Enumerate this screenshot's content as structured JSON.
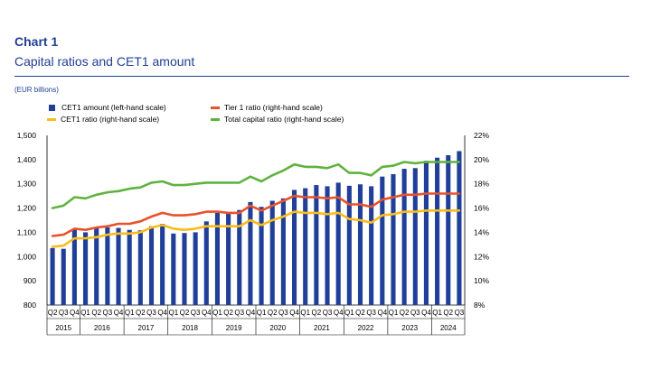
{
  "header": {
    "chart_label": "Chart 1",
    "chart_title": "Capital ratios and CET1 amount",
    "unit": "(EUR billions)"
  },
  "colors": {
    "cet1_amount": "#203f99",
    "cet1_ratio": "#fbbc1b",
    "tier1_ratio": "#e8522c",
    "total_capital_ratio": "#5fb33d"
  },
  "chart_data": {
    "type": "bar+line",
    "title": "Capital ratios and CET1 amount",
    "unit": "(EUR billions)",
    "quarter_labels": [
      "Q2",
      "Q3",
      "Q4",
      "Q1",
      "Q2",
      "Q3",
      "Q4",
      "Q1",
      "Q2",
      "Q3",
      "Q4",
      "Q1",
      "Q2",
      "Q3",
      "Q4",
      "Q1",
      "Q2",
      "Q3",
      "Q4",
      "Q1",
      "Q2",
      "Q3",
      "Q4",
      "Q1",
      "Q2",
      "Q3",
      "Q4",
      "Q1",
      "Q2",
      "Q3",
      "Q4",
      "Q1",
      "Q2",
      "Q3",
      "Q4",
      "Q1",
      "Q2",
      "Q3"
    ],
    "years": [
      {
        "label": "2015",
        "quarters": 3
      },
      {
        "label": "2016",
        "quarters": 4
      },
      {
        "label": "2017",
        "quarters": 4
      },
      {
        "label": "2018",
        "quarters": 4
      },
      {
        "label": "2019",
        "quarters": 4
      },
      {
        "label": "2020",
        "quarters": 4
      },
      {
        "label": "2021",
        "quarters": 4
      },
      {
        "label": "2022",
        "quarters": 4
      },
      {
        "label": "2023",
        "quarters": 4
      },
      {
        "label": "2024",
        "quarters": 3
      }
    ],
    "left_axis": {
      "min": 800,
      "max": 1500,
      "ticks": [
        "800",
        "900",
        "1,000",
        "1,100",
        "1,200",
        "1,300",
        "1,400",
        "1,500"
      ]
    },
    "right_axis": {
      "min": 8,
      "max": 22,
      "ticks": [
        "8%",
        "10%",
        "12%",
        "14%",
        "16%",
        "18%",
        "20%",
        "22%"
      ]
    },
    "legend": [
      {
        "key": "cet1_amount",
        "label": "CET1 amount (left-hand scale)",
        "kind": "bar"
      },
      {
        "key": "tier1_ratio",
        "label": "Tier 1 ratio (right-hand scale)",
        "kind": "line"
      },
      {
        "key": "cet1_ratio",
        "label": "CET1 ratio (right-hand scale)",
        "kind": "line"
      },
      {
        "key": "total_capital_ratio",
        "label": "Total capital ratio (right-hand scale)",
        "kind": "line"
      }
    ],
    "series": {
      "cet1_amount": [
        1035,
        1032,
        1112,
        1100,
        1118,
        1120,
        1118,
        1110,
        1108,
        1125,
        1135,
        1095,
        1097,
        1100,
        1145,
        1180,
        1180,
        1192,
        1225,
        1205,
        1230,
        1240,
        1275,
        1282,
        1295,
        1290,
        1305,
        1292,
        1298,
        1290,
        1330,
        1340,
        1362,
        1365,
        1395,
        1408,
        1418,
        1435
      ],
      "cet1_ratio": [
        12.8,
        12.9,
        13.5,
        13.5,
        13.6,
        13.8,
        13.9,
        13.9,
        14.0,
        14.4,
        14.6,
        14.3,
        14.2,
        14.3,
        14.5,
        14.5,
        14.5,
        14.5,
        15.0,
        14.6,
        15.0,
        15.3,
        15.7,
        15.6,
        15.6,
        15.5,
        15.6,
        15.1,
        15.0,
        14.8,
        15.4,
        15.5,
        15.7,
        15.7,
        15.8,
        15.8,
        15.8,
        15.8
      ],
      "tier1_ratio": [
        13.7,
        13.8,
        14.3,
        14.2,
        14.4,
        14.5,
        14.7,
        14.7,
        14.9,
        15.3,
        15.6,
        15.4,
        15.4,
        15.5,
        15.7,
        15.7,
        15.6,
        15.6,
        16.2,
        15.8,
        16.2,
        16.6,
        17.0,
        16.9,
        16.9,
        16.8,
        16.9,
        16.3,
        16.3,
        16.1,
        16.7,
        16.9,
        17.1,
        17.1,
        17.2,
        17.2,
        17.2,
        17.2
      ],
      "total_capital_ratio": [
        16.0,
        16.2,
        16.9,
        16.8,
        17.1,
        17.3,
        17.4,
        17.6,
        17.7,
        18.1,
        18.2,
        17.9,
        17.9,
        18.0,
        18.1,
        18.1,
        18.1,
        18.1,
        18.6,
        18.2,
        18.7,
        19.1,
        19.6,
        19.4,
        19.4,
        19.3,
        19.6,
        18.9,
        18.9,
        18.7,
        19.4,
        19.5,
        19.8,
        19.7,
        19.8,
        19.8,
        19.8,
        19.8
      ]
    }
  }
}
